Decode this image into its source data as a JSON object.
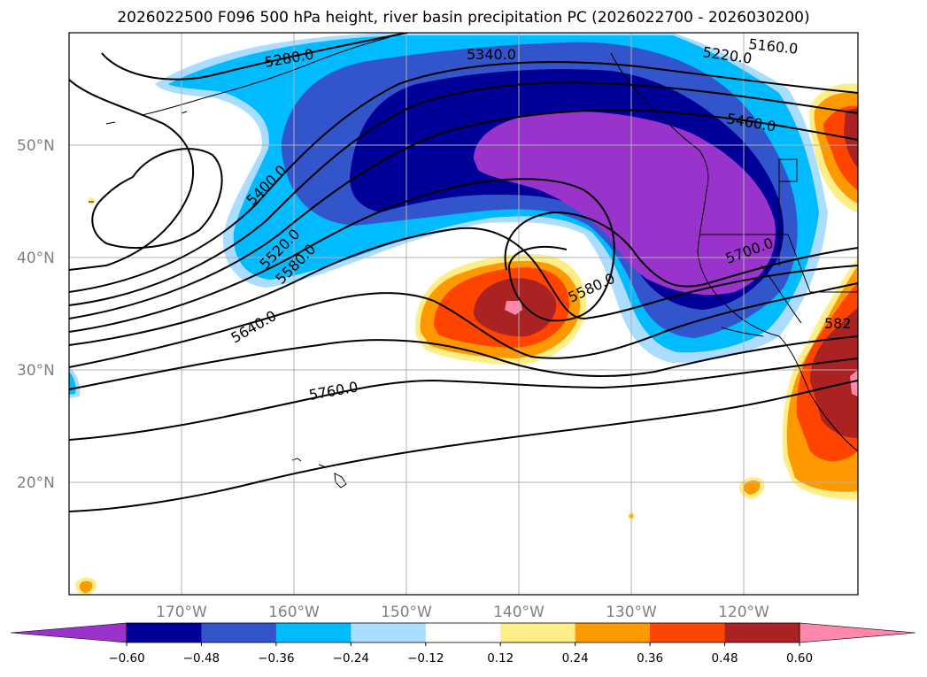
{
  "title": "2026022500 F096 500 hPa height, river basin precipitation PC (2026022700 - 2026030200)",
  "map": {
    "lon_range": [
      -180,
      -110
    ],
    "lat_range": [
      10,
      60
    ],
    "lat_ticks": [
      {
        "value": 20,
        "label": "20°N"
      },
      {
        "value": 30,
        "label": "30°N"
      },
      {
        "value": 40,
        "label": "40°N"
      },
      {
        "value": 50,
        "label": "50°N"
      }
    ],
    "lon_ticks": [
      {
        "value": -170,
        "label": "170°W"
      },
      {
        "value": -160,
        "label": "160°W"
      },
      {
        "value": -150,
        "label": "150°W"
      },
      {
        "value": -140,
        "label": "140°W"
      },
      {
        "value": -130,
        "label": "130°W"
      },
      {
        "value": -120,
        "label": "120°W"
      }
    ],
    "grid": true,
    "contour_labels": [
      "5160.0",
      "5220.0",
      "5280.0",
      "5340.0",
      "5400.0",
      "5460.0",
      "5520.0",
      "5580.0",
      "5580.0",
      "5640.0",
      "5700.0",
      "5760.0",
      "582"
    ]
  },
  "colorbar": {
    "levels": [
      "−0.60",
      "−0.48",
      "−0.36",
      "−0.24",
      "−0.12",
      "0.12",
      "0.24",
      "0.36",
      "0.48",
      "0.60"
    ],
    "colors": [
      "#9933cc",
      "#000099",
      "#3355cc",
      "#00bbff",
      "#aaddff",
      "#ffffff",
      "#ffee88",
      "#ff9900",
      "#ff4400",
      "#aa2222",
      "#ff88aa"
    ],
    "extend": "both"
  }
}
